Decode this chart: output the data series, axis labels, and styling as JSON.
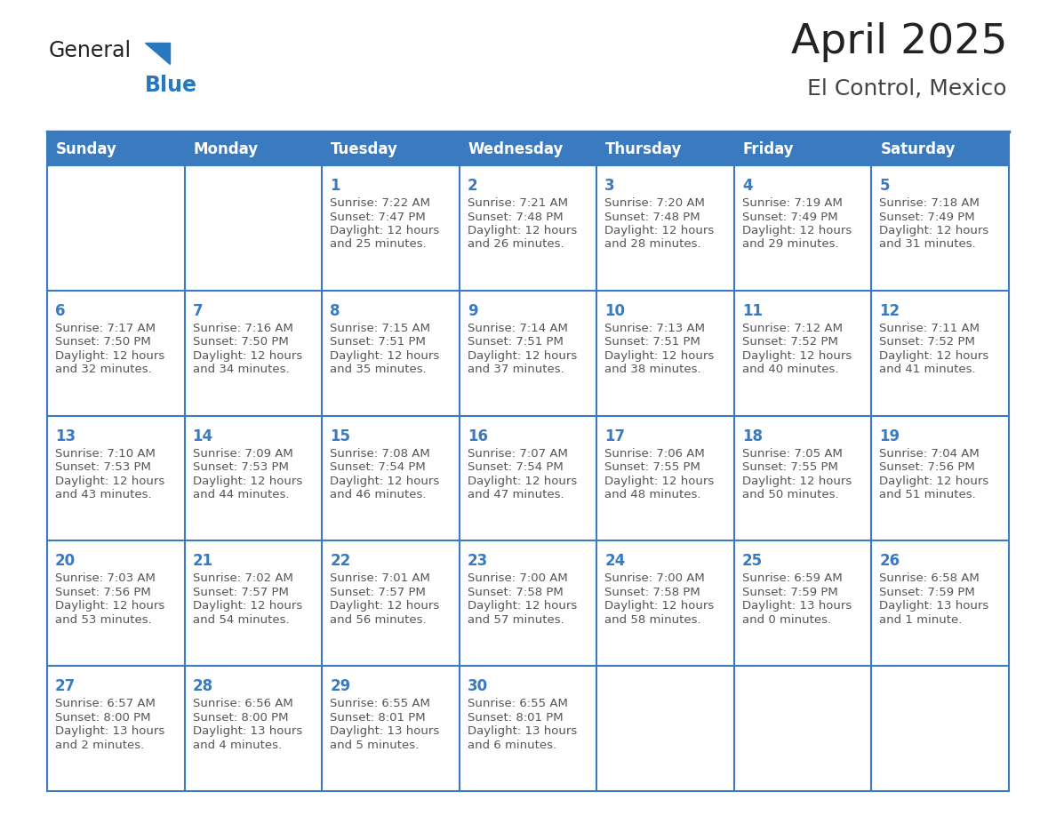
{
  "title": "April 2025",
  "subtitle": "El Control, Mexico",
  "header_bg_color": "#3a7abf",
  "header_text_color": "#ffffff",
  "cell_bg_color": "#ffffff",
  "cell_text_color": "#555555",
  "border_color": "#3a7abf",
  "day_number_color": "#3a7abf",
  "grid_line_color": "#bbbbbb",
  "days_of_week": [
    "Sunday",
    "Monday",
    "Tuesday",
    "Wednesday",
    "Thursday",
    "Friday",
    "Saturday"
  ],
  "weeks": [
    [
      {
        "day": null,
        "data": null
      },
      {
        "day": null,
        "data": null
      },
      {
        "day": 1,
        "data": {
          "sunrise": "7:22 AM",
          "sunset": "7:47 PM",
          "daylight_h": "12 hours",
          "daylight_m": "and 25 minutes."
        }
      },
      {
        "day": 2,
        "data": {
          "sunrise": "7:21 AM",
          "sunset": "7:48 PM",
          "daylight_h": "12 hours",
          "daylight_m": "and 26 minutes."
        }
      },
      {
        "day": 3,
        "data": {
          "sunrise": "7:20 AM",
          "sunset": "7:48 PM",
          "daylight_h": "12 hours",
          "daylight_m": "and 28 minutes."
        }
      },
      {
        "day": 4,
        "data": {
          "sunrise": "7:19 AM",
          "sunset": "7:49 PM",
          "daylight_h": "12 hours",
          "daylight_m": "and 29 minutes."
        }
      },
      {
        "day": 5,
        "data": {
          "sunrise": "7:18 AM",
          "sunset": "7:49 PM",
          "daylight_h": "12 hours",
          "daylight_m": "and 31 minutes."
        }
      }
    ],
    [
      {
        "day": 6,
        "data": {
          "sunrise": "7:17 AM",
          "sunset": "7:50 PM",
          "daylight_h": "12 hours",
          "daylight_m": "and 32 minutes."
        }
      },
      {
        "day": 7,
        "data": {
          "sunrise": "7:16 AM",
          "sunset": "7:50 PM",
          "daylight_h": "12 hours",
          "daylight_m": "and 34 minutes."
        }
      },
      {
        "day": 8,
        "data": {
          "sunrise": "7:15 AM",
          "sunset": "7:51 PM",
          "daylight_h": "12 hours",
          "daylight_m": "and 35 minutes."
        }
      },
      {
        "day": 9,
        "data": {
          "sunrise": "7:14 AM",
          "sunset": "7:51 PM",
          "daylight_h": "12 hours",
          "daylight_m": "and 37 minutes."
        }
      },
      {
        "day": 10,
        "data": {
          "sunrise": "7:13 AM",
          "sunset": "7:51 PM",
          "daylight_h": "12 hours",
          "daylight_m": "and 38 minutes."
        }
      },
      {
        "day": 11,
        "data": {
          "sunrise": "7:12 AM",
          "sunset": "7:52 PM",
          "daylight_h": "12 hours",
          "daylight_m": "and 40 minutes."
        }
      },
      {
        "day": 12,
        "data": {
          "sunrise": "7:11 AM",
          "sunset": "7:52 PM",
          "daylight_h": "12 hours",
          "daylight_m": "and 41 minutes."
        }
      }
    ],
    [
      {
        "day": 13,
        "data": {
          "sunrise": "7:10 AM",
          "sunset": "7:53 PM",
          "daylight_h": "12 hours",
          "daylight_m": "and 43 minutes."
        }
      },
      {
        "day": 14,
        "data": {
          "sunrise": "7:09 AM",
          "sunset": "7:53 PM",
          "daylight_h": "12 hours",
          "daylight_m": "and 44 minutes."
        }
      },
      {
        "day": 15,
        "data": {
          "sunrise": "7:08 AM",
          "sunset": "7:54 PM",
          "daylight_h": "12 hours",
          "daylight_m": "and 46 minutes."
        }
      },
      {
        "day": 16,
        "data": {
          "sunrise": "7:07 AM",
          "sunset": "7:54 PM",
          "daylight_h": "12 hours",
          "daylight_m": "and 47 minutes."
        }
      },
      {
        "day": 17,
        "data": {
          "sunrise": "7:06 AM",
          "sunset": "7:55 PM",
          "daylight_h": "12 hours",
          "daylight_m": "and 48 minutes."
        }
      },
      {
        "day": 18,
        "data": {
          "sunrise": "7:05 AM",
          "sunset": "7:55 PM",
          "daylight_h": "12 hours",
          "daylight_m": "and 50 minutes."
        }
      },
      {
        "day": 19,
        "data": {
          "sunrise": "7:04 AM",
          "sunset": "7:56 PM",
          "daylight_h": "12 hours",
          "daylight_m": "and 51 minutes."
        }
      }
    ],
    [
      {
        "day": 20,
        "data": {
          "sunrise": "7:03 AM",
          "sunset": "7:56 PM",
          "daylight_h": "12 hours",
          "daylight_m": "and 53 minutes."
        }
      },
      {
        "day": 21,
        "data": {
          "sunrise": "7:02 AM",
          "sunset": "7:57 PM",
          "daylight_h": "12 hours",
          "daylight_m": "and 54 minutes."
        }
      },
      {
        "day": 22,
        "data": {
          "sunrise": "7:01 AM",
          "sunset": "7:57 PM",
          "daylight_h": "12 hours",
          "daylight_m": "and 56 minutes."
        }
      },
      {
        "day": 23,
        "data": {
          "sunrise": "7:00 AM",
          "sunset": "7:58 PM",
          "daylight_h": "12 hours",
          "daylight_m": "and 57 minutes."
        }
      },
      {
        "day": 24,
        "data": {
          "sunrise": "7:00 AM",
          "sunset": "7:58 PM",
          "daylight_h": "12 hours",
          "daylight_m": "and 58 minutes."
        }
      },
      {
        "day": 25,
        "data": {
          "sunrise": "6:59 AM",
          "sunset": "7:59 PM",
          "daylight_h": "13 hours",
          "daylight_m": "and 0 minutes."
        }
      },
      {
        "day": 26,
        "data": {
          "sunrise": "6:58 AM",
          "sunset": "7:59 PM",
          "daylight_h": "13 hours",
          "daylight_m": "and 1 minute."
        }
      }
    ],
    [
      {
        "day": 27,
        "data": {
          "sunrise": "6:57 AM",
          "sunset": "8:00 PM",
          "daylight_h": "13 hours",
          "daylight_m": "and 2 minutes."
        }
      },
      {
        "day": 28,
        "data": {
          "sunrise": "6:56 AM",
          "sunset": "8:00 PM",
          "daylight_h": "13 hours",
          "daylight_m": "and 4 minutes."
        }
      },
      {
        "day": 29,
        "data": {
          "sunrise": "6:55 AM",
          "sunset": "8:01 PM",
          "daylight_h": "13 hours",
          "daylight_m": "and 5 minutes."
        }
      },
      {
        "day": 30,
        "data": {
          "sunrise": "6:55 AM",
          "sunset": "8:01 PM",
          "daylight_h": "13 hours",
          "daylight_m": "and 6 minutes."
        }
      },
      {
        "day": null,
        "data": null
      },
      {
        "day": null,
        "data": null
      },
      {
        "day": null,
        "data": null
      }
    ]
  ],
  "logo_color_general": "#222222",
  "logo_color_blue": "#2878be",
  "title_fontsize": 34,
  "subtitle_fontsize": 18,
  "header_fontsize": 12,
  "day_num_fontsize": 12,
  "cell_text_fontsize": 9.5
}
